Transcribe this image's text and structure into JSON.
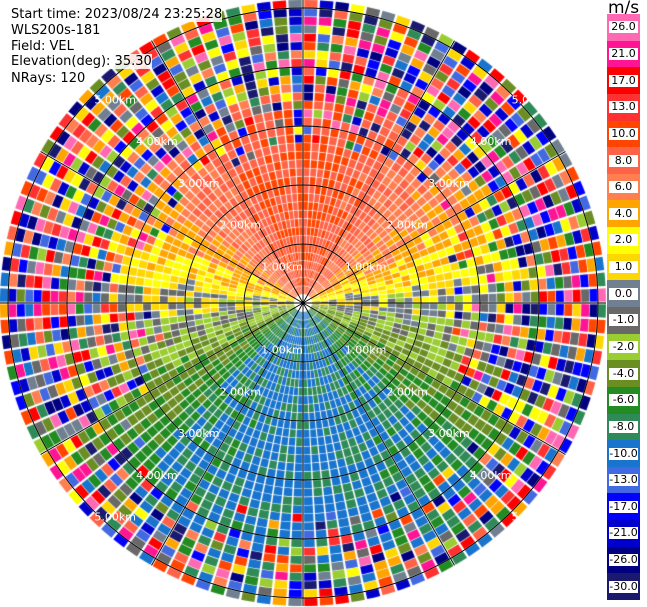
{
  "header": {
    "start_time": "Start time: 2023/08/24 23:25:28",
    "instrument": "WLS200s-181",
    "field": "Field: VEL",
    "elevation": "Elevation(deg): 35.30",
    "nrays": "NRays: 120"
  },
  "chart_data": {
    "type": "heatmap",
    "projection": "polar PPI",
    "field": "VEL",
    "nrays": 120,
    "range_rings_km": [
      1,
      2,
      3,
      4,
      5
    ],
    "range_labels": [
      "1.00km",
      "2.00km",
      "3.00km",
      "4.00km",
      "5.00km"
    ],
    "radial_lines_deg": [
      0,
      30,
      60,
      90,
      120,
      150,
      180,
      210,
      240,
      270,
      300,
      330
    ],
    "max_range_km": 5.15,
    "pattern": "north +6 to +10 m/s, east/west +1 to +4 m/s, near-horizontal 0 m/s band, south -6 to -10 m/s; noisy beyond about 3 km",
    "colorbar": {
      "units": "m/s",
      "labels": [
        "26.0",
        "21.0",
        "17.0",
        "13.0",
        "10.0",
        "8.0",
        "6.0",
        "4.0",
        "2.0",
        "1.0",
        "0.0",
        "-1.0",
        "-2.0",
        "-4.0",
        "-6.0",
        "-8.0",
        "-10.0",
        "-13.0",
        "-17.0",
        "-21.0",
        "-26.0",
        "-30.0"
      ],
      "colors": [
        "#ff69b4",
        "#ff1493",
        "#ff0000",
        "#ff3030",
        "#ff4500",
        "#ff6347",
        "#ff7f50",
        "#ffa500",
        "#ffff00",
        "#ffd700",
        "#708090",
        "#696969",
        "#9acd32",
        "#6b8e23",
        "#228b22",
        "#2e8b57",
        "#1874cd",
        "#4169e1",
        "#0000ff",
        "#0000cd",
        "#000080",
        "#191970"
      ]
    }
  }
}
